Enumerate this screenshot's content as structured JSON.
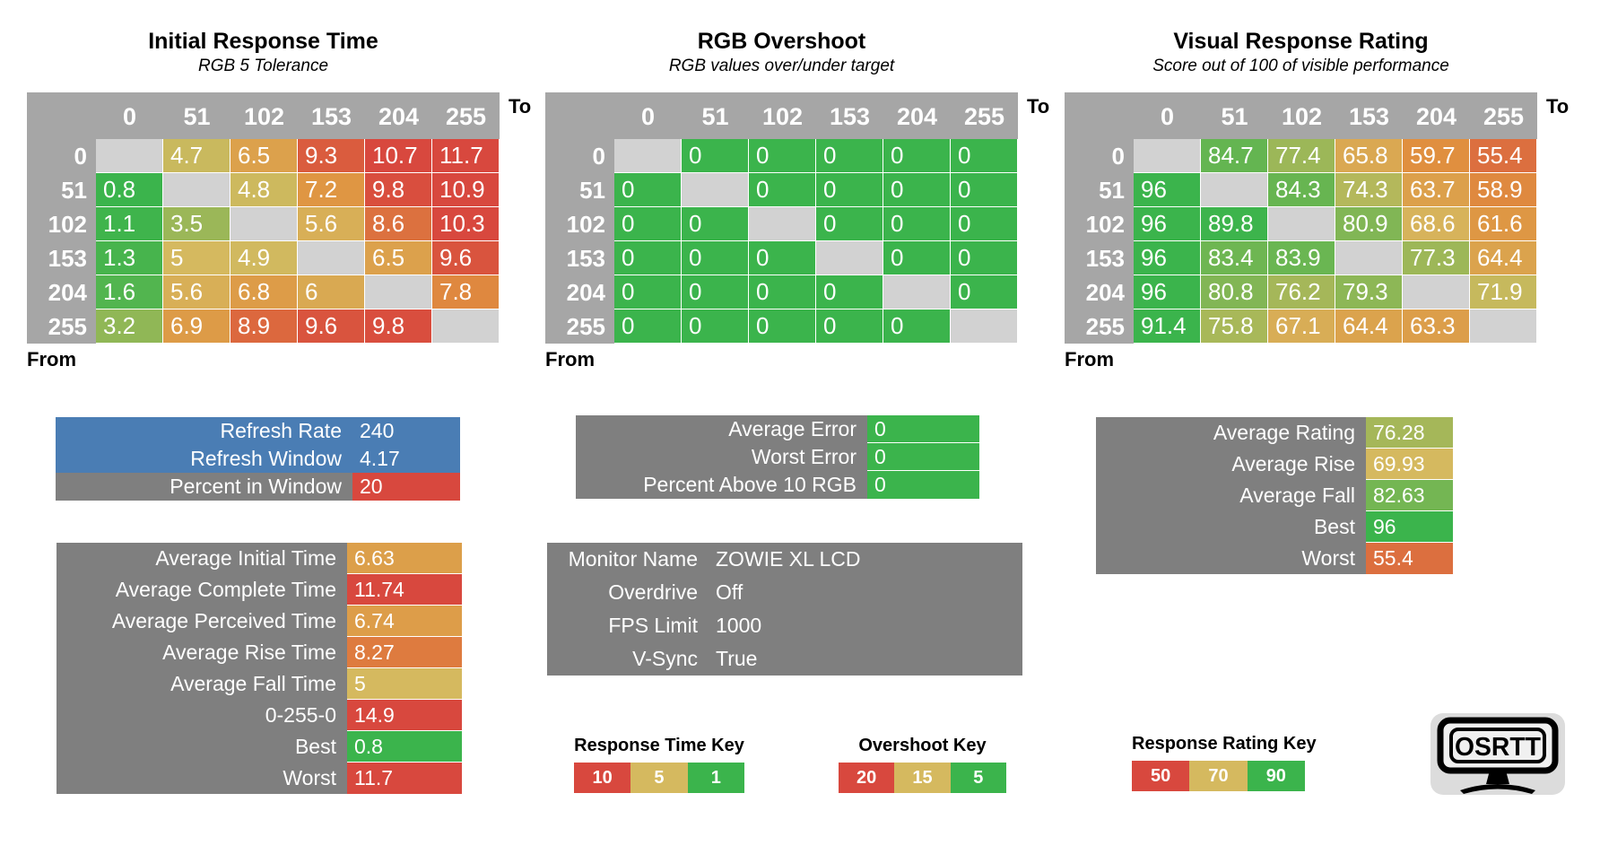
{
  "colors": {
    "background": "#FFFFFF",
    "header_gray": "#A6A6A6",
    "diagonal_gray": "#D2D2D2",
    "label_gray": "#7F7F7F",
    "blue": "#4A7DB4",
    "green": "#3BB44C",
    "tan": "#D5B95F",
    "orange": "#E0913F",
    "red": "#D8483E",
    "logo_bg": "#DCDCDC"
  },
  "scales": {
    "response_time": {
      "stops": [
        [
          1,
          "#3BB44C"
        ],
        [
          5,
          "#D5B95F"
        ],
        [
          7.5,
          "#E0913F"
        ],
        [
          10,
          "#D8483E"
        ]
      ]
    },
    "overshoot": {
      "stops": [
        [
          5,
          "#3BB44C"
        ],
        [
          15,
          "#D5B95F"
        ],
        [
          17.5,
          "#E0913F"
        ],
        [
          20,
          "#D8483E"
        ]
      ]
    },
    "rating": {
      "stops": [
        [
          90,
          "#3BB44C"
        ],
        [
          70,
          "#D5B95F"
        ],
        [
          60,
          "#E0913F"
        ],
        [
          50,
          "#D8483E"
        ]
      ]
    }
  },
  "chart_data": [
    {
      "type": "heatmap",
      "title": "Initial Response Time",
      "subtitle": "RGB 5 Tolerance",
      "axis_to": "To",
      "axis_from": "From",
      "col_headers": [
        "0",
        "51",
        "102",
        "153",
        "204",
        "255"
      ],
      "row_headers": [
        "0",
        "51",
        "102",
        "153",
        "204",
        "255"
      ],
      "scale": "response_time",
      "values": [
        [
          null,
          4.7,
          6.5,
          9.3,
          10.7,
          11.7
        ],
        [
          0.8,
          null,
          4.8,
          7.2,
          9.8,
          10.9
        ],
        [
          1.1,
          3.5,
          null,
          5.6,
          8.6,
          10.3
        ],
        [
          1.3,
          5,
          4.9,
          null,
          6.5,
          9.6
        ],
        [
          1.6,
          5.6,
          6.8,
          6,
          null,
          7.8
        ],
        [
          3.2,
          6.9,
          8.9,
          9.6,
          9.8,
          null
        ]
      ]
    },
    {
      "type": "heatmap",
      "title": "RGB Overshoot",
      "subtitle": "RGB values over/under target",
      "axis_to": "To",
      "axis_from": "From",
      "col_headers": [
        "0",
        "51",
        "102",
        "153",
        "204",
        "255"
      ],
      "row_headers": [
        "0",
        "51",
        "102",
        "153",
        "204",
        "255"
      ],
      "scale": "overshoot",
      "values": [
        [
          null,
          0,
          0,
          0,
          0,
          0
        ],
        [
          0,
          null,
          0,
          0,
          0,
          0
        ],
        [
          0,
          0,
          null,
          0,
          0,
          0
        ],
        [
          0,
          0,
          0,
          null,
          0,
          0
        ],
        [
          0,
          0,
          0,
          0,
          null,
          0
        ],
        [
          0,
          0,
          0,
          0,
          0,
          null
        ]
      ]
    },
    {
      "type": "heatmap",
      "title": "Visual Response Rating",
      "subtitle": "Score out of 100 of visible performance",
      "axis_to": "To",
      "axis_from": "From",
      "col_headers": [
        "0",
        "51",
        "102",
        "153",
        "204",
        "255"
      ],
      "row_headers": [
        "0",
        "51",
        "102",
        "153",
        "204",
        "255"
      ],
      "scale": "rating",
      "values": [
        [
          null,
          84.7,
          77.4,
          65.8,
          59.7,
          55.4
        ],
        [
          96,
          null,
          84.3,
          74.3,
          63.7,
          58.9
        ],
        [
          96,
          89.8,
          null,
          80.9,
          68.6,
          61.6
        ],
        [
          96,
          83.4,
          83.9,
          null,
          77.3,
          64.4
        ],
        [
          96,
          80.8,
          76.2,
          79.3,
          null,
          71.9
        ],
        [
          91.4,
          75.8,
          67.1,
          64.4,
          63.3,
          null
        ]
      ]
    }
  ],
  "stat_blocks": [
    {
      "id": "refresh",
      "rows": [
        {
          "label": "Refresh Rate",
          "value": "240",
          "row_bg": "#4A7DB4"
        },
        {
          "label": "Refresh Window",
          "value": "4.17",
          "row_bg": "#4A7DB4"
        },
        {
          "label": "Percent in Window",
          "value": "20",
          "value_bg": "#D8483E"
        }
      ]
    },
    {
      "id": "times",
      "rows": [
        {
          "label": "Average Initial Time",
          "value": "6.63",
          "scale": "response_time"
        },
        {
          "label": "Average Complete Time",
          "value": "11.74",
          "scale": "response_time"
        },
        {
          "label": "Average Perceived Time",
          "value": "6.74",
          "scale": "response_time"
        },
        {
          "label": "Average Rise Time",
          "value": "8.27",
          "scale": "response_time"
        },
        {
          "label": "Average Fall Time",
          "value": "5",
          "scale": "response_time"
        },
        {
          "label": "0-255-0",
          "value": "14.9",
          "scale": "response_time"
        },
        {
          "label": "Best",
          "value": "0.8",
          "scale": "response_time"
        },
        {
          "label": "Worst",
          "value": "11.7",
          "scale": "response_time"
        }
      ]
    },
    {
      "id": "error",
      "rows": [
        {
          "label": "Average Error",
          "value": "0",
          "scale": "overshoot"
        },
        {
          "label": "Worst Error",
          "value": "0",
          "scale": "overshoot"
        },
        {
          "label": "Percent Above 10 RGB",
          "value": "0",
          "scale": "overshoot"
        }
      ]
    },
    {
      "id": "monitor",
      "rows": [
        {
          "label": "Monitor Name",
          "value": "ZOWIE XL LCD"
        },
        {
          "label": "Overdrive",
          "value": "Off"
        },
        {
          "label": "FPS Limit",
          "value": "1000"
        },
        {
          "label": "V-Sync",
          "value": "True"
        }
      ]
    },
    {
      "id": "rating",
      "rows": [
        {
          "label": "Average Rating",
          "value": "76.28",
          "scale": "rating"
        },
        {
          "label": "Average Rise",
          "value": "69.93",
          "scale": "rating"
        },
        {
          "label": "Average Fall",
          "value": "82.63",
          "scale": "rating"
        },
        {
          "label": "Best",
          "value": "96",
          "scale": "rating"
        },
        {
          "label": "Worst",
          "value": "55.4",
          "scale": "rating"
        }
      ]
    }
  ],
  "keys": [
    {
      "id": "response-time",
      "title": "Response Time Key",
      "cells": [
        {
          "label": "10",
          "color": "#D8483E"
        },
        {
          "label": "5",
          "color": "#D5B95F"
        },
        {
          "label": "1",
          "color": "#3BB44C"
        }
      ]
    },
    {
      "id": "overshoot",
      "title": "Overshoot Key",
      "cells": [
        {
          "label": "20",
          "color": "#D8483E"
        },
        {
          "label": "15",
          "color": "#D5B95F"
        },
        {
          "label": "5",
          "color": "#3BB44C"
        }
      ]
    },
    {
      "id": "rating",
      "title": "Response Rating Key",
      "cells": [
        {
          "label": "50",
          "color": "#D8483E"
        },
        {
          "label": "70",
          "color": "#D5B95F"
        },
        {
          "label": "90",
          "color": "#3BB44C"
        }
      ]
    }
  ],
  "logo": {
    "text": "OSRTT"
  }
}
